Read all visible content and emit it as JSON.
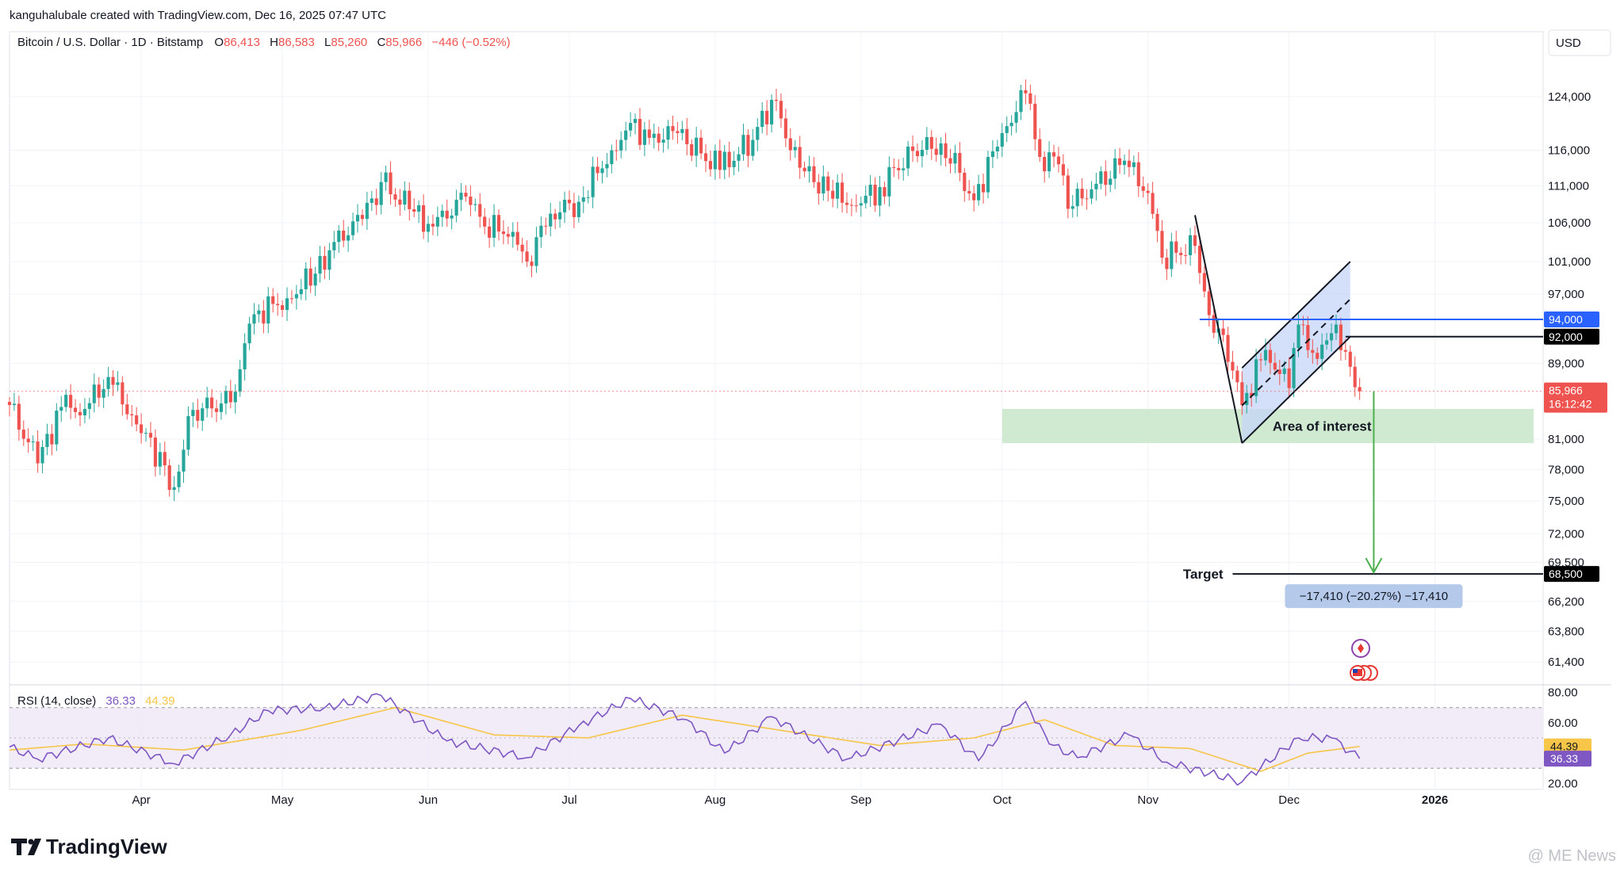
{
  "header": {
    "credit": "kanguhalubale created with TradingView.com, Dec 16, 2025 07:47 UTC"
  },
  "legend": {
    "symbol": "Bitcoin / U.S. Dollar · 1D · Bitstamp",
    "o_label": "O",
    "o_value": "86,413",
    "h_label": "H",
    "h_value": "86,583",
    "l_label": "L",
    "l_value": "85,260",
    "c_label": "C",
    "c_value": "85,966",
    "change": "−446 (−0.52%)"
  },
  "currency_button": "USD",
  "rsi_legend": {
    "label": "RSI (14, close)",
    "value1": "36.33",
    "value2": "44.39"
  },
  "annotations": {
    "area_of_interest": "Area of interest",
    "target_label": "Target",
    "measure_label": "−17,410 (−20.27%) −17,410"
  },
  "price_badges": {
    "blue_line": "94,000",
    "black_line": "92,000",
    "last_price": "85,966",
    "countdown": "16:12:42",
    "target": "68,500",
    "rsi_ma": "44.39",
    "rsi_value": "36.33"
  },
  "branding": {
    "logo_text": "TradingView",
    "watermark": "@ ME News"
  },
  "colors": {
    "up": "#26a69a",
    "down": "#ef5350",
    "blue_line": "#2962ff",
    "rsi_line": "#7e57c2",
    "rsi_ma": "#f7c548",
    "zone_green": "#c8e6c9",
    "channel_fill": "#c5d5f7",
    "arrow_green": "#4caf50"
  },
  "chart_data": [
    {
      "type": "candlestick",
      "title": "Bitcoin / U.S. Dollar · 1D · Bitstamp",
      "y_axis_ticks": [
        61400,
        63800,
        66200,
        69500,
        72000,
        75000,
        78000,
        81000,
        89000,
        97000,
        101000,
        106000,
        111000,
        116000,
        124000
      ],
      "y_axis_tick_labels": [
        "61,400",
        "63,800",
        "66,200",
        "69,500",
        "72,000",
        "75,000",
        "78,000",
        "81,000",
        "89,000",
        "97,000",
        "101,000",
        "106,000",
        "111,000",
        "116,000",
        "124,000"
      ],
      "x_axis_ticks": [
        "2025-04-01",
        "2025-05-01",
        "2025-06-01",
        "2025-07-01",
        "2025-08-01",
        "2025-09-01",
        "2025-10-01",
        "2025-11-01",
        "2025-12-01",
        "2026-01-01"
      ],
      "x_axis_tick_labels": [
        "Apr",
        "May",
        "Jun",
        "Jul",
        "Aug",
        "Sep",
        "Oct",
        "Nov",
        "Dec",
        "2026"
      ],
      "x_range": [
        "2025-03-04",
        "2026-01-24"
      ],
      "y_range": [
        59800,
        130500
      ],
      "y_scale": "log",
      "grid": true,
      "last_price": 85966,
      "horizontal_lines": [
        {
          "value": 94000,
          "color": "blue",
          "from": "2025-11-12"
        },
        {
          "value": 92000,
          "color": "black",
          "from": "2025-12-13"
        }
      ],
      "zones": [
        {
          "name": "Area of interest",
          "y_from": 80600,
          "y_to": 84100,
          "x_from": "2025-10-01",
          "x_to": "2026-01-22"
        }
      ],
      "flag_pattern": {
        "pole": [
          {
            "x": "2025-11-11",
            "y": 107000
          },
          {
            "x": "2025-11-21",
            "y": 80600
          }
        ],
        "channel_upper": [
          {
            "x": "2025-11-21",
            "y": 88500
          },
          {
            "x": "2025-12-14",
            "y": 101000
          }
        ],
        "channel_lower": [
          {
            "x": "2025-11-21",
            "y": 80600
          },
          {
            "x": "2025-12-14",
            "y": 92000
          }
        ]
      },
      "target": {
        "value": 68500,
        "label": "Target",
        "move": -17410,
        "move_pct": -20.27,
        "arrow_from": {
          "x": "2025-12-19",
          "y": 85966
        }
      },
      "candle_anchors": [
        {
          "date": "2025-03-04",
          "close": 84500
        },
        {
          "date": "2025-03-10",
          "close": 78600
        },
        {
          "date": "2025-03-15",
          "close": 84300
        },
        {
          "date": "2025-03-20",
          "close": 84100
        },
        {
          "date": "2025-03-25",
          "close": 87500
        },
        {
          "date": "2025-03-31",
          "close": 82500
        },
        {
          "date": "2025-04-06",
          "close": 78400
        },
        {
          "date": "2025-04-08",
          "close": 76300
        },
        {
          "date": "2025-04-12",
          "close": 84000
        },
        {
          "date": "2025-04-20",
          "close": 84800
        },
        {
          "date": "2025-04-25",
          "close": 94600
        },
        {
          "date": "2025-05-02",
          "close": 96500
        },
        {
          "date": "2025-05-08",
          "close": 99500
        },
        {
          "date": "2025-05-12",
          "close": 103500
        },
        {
          "date": "2025-05-18",
          "close": 106500
        },
        {
          "date": "2025-05-22",
          "close": 111500
        },
        {
          "date": "2025-05-28",
          "close": 107800
        },
        {
          "date": "2025-06-02",
          "close": 105500
        },
        {
          "date": "2025-06-09",
          "close": 109500
        },
        {
          "date": "2025-06-13",
          "close": 105500
        },
        {
          "date": "2025-06-19",
          "close": 104800
        },
        {
          "date": "2025-06-22",
          "close": 101000
        },
        {
          "date": "2025-06-27",
          "close": 107200
        },
        {
          "date": "2025-07-03",
          "close": 108800
        },
        {
          "date": "2025-07-10",
          "close": 116000
        },
        {
          "date": "2025-07-14",
          "close": 120000
        },
        {
          "date": "2025-07-18",
          "close": 117800
        },
        {
          "date": "2025-07-24",
          "close": 118500
        },
        {
          "date": "2025-08-02",
          "close": 113200
        },
        {
          "date": "2025-08-09",
          "close": 117500
        },
        {
          "date": "2025-08-13",
          "close": 123500
        },
        {
          "date": "2025-08-19",
          "close": 113500
        },
        {
          "date": "2025-08-25",
          "close": 110300
        },
        {
          "date": "2025-08-31",
          "close": 108300
        },
        {
          "date": "2025-09-05",
          "close": 110800
        },
        {
          "date": "2025-09-12",
          "close": 115900
        },
        {
          "date": "2025-09-18",
          "close": 117000
        },
        {
          "date": "2025-09-22",
          "close": 112800
        },
        {
          "date": "2025-09-25",
          "close": 109000
        },
        {
          "date": "2025-10-01",
          "close": 118500
        },
        {
          "date": "2025-10-06",
          "close": 124500
        },
        {
          "date": "2025-10-10",
          "close": 113000
        },
        {
          "date": "2025-10-12",
          "close": 115100
        },
        {
          "date": "2025-10-16",
          "close": 108200
        },
        {
          "date": "2025-10-20",
          "close": 110500
        },
        {
          "date": "2025-10-27",
          "close": 114500
        },
        {
          "date": "2025-11-01",
          "close": 110000
        },
        {
          "date": "2025-11-04",
          "close": 101500
        },
        {
          "date": "2025-11-11",
          "close": 103000
        },
        {
          "date": "2025-11-14",
          "close": 94500
        },
        {
          "date": "2025-11-17",
          "close": 92200
        },
        {
          "date": "2025-11-21",
          "close": 84500
        },
        {
          "date": "2025-11-26",
          "close": 90500
        },
        {
          "date": "2025-12-01",
          "close": 86300
        },
        {
          "date": "2025-12-03",
          "close": 93400
        },
        {
          "date": "2025-12-07",
          "close": 89500
        },
        {
          "date": "2025-12-10",
          "close": 92400
        },
        {
          "date": "2025-12-13",
          "close": 90300
        },
        {
          "date": "2025-12-15",
          "close": 86400
        },
        {
          "date": "2025-12-16",
          "close": 85966
        }
      ]
    },
    {
      "type": "line",
      "title": "RSI (14, close)",
      "y_range": [
        16,
        84
      ],
      "y_axis_ticks": [
        20,
        60,
        80
      ],
      "y_axis_tick_labels": [
        "20.00",
        "60.00",
        "80.00"
      ],
      "bands": [
        30,
        50,
        70
      ],
      "series": [
        {
          "name": "RSI",
          "anchors": [
            {
              "date": "2025-03-04",
              "value": 44
            },
            {
              "date": "2025-03-10",
              "value": 36
            },
            {
              "date": "2025-03-25",
              "value": 50
            },
            {
              "date": "2025-04-08",
              "value": 33
            },
            {
              "date": "2025-04-20",
              "value": 52
            },
            {
              "date": "2025-04-28",
              "value": 68
            },
            {
              "date": "2025-05-10",
              "value": 70
            },
            {
              "date": "2025-05-22",
              "value": 78
            },
            {
              "date": "2025-06-05",
              "value": 48
            },
            {
              "date": "2025-06-22",
              "value": 37
            },
            {
              "date": "2025-07-03",
              "value": 58
            },
            {
              "date": "2025-07-14",
              "value": 76
            },
            {
              "date": "2025-07-26",
              "value": 62
            },
            {
              "date": "2025-08-03",
              "value": 40
            },
            {
              "date": "2025-08-13",
              "value": 64
            },
            {
              "date": "2025-08-29",
              "value": 36
            },
            {
              "date": "2025-09-18",
              "value": 59
            },
            {
              "date": "2025-09-26",
              "value": 35
            },
            {
              "date": "2025-10-06",
              "value": 74
            },
            {
              "date": "2025-10-11",
              "value": 46
            },
            {
              "date": "2025-10-17",
              "value": 37
            },
            {
              "date": "2025-10-28",
              "value": 52
            },
            {
              "date": "2025-11-05",
              "value": 34
            },
            {
              "date": "2025-11-21",
              "value": 21
            },
            {
              "date": "2025-12-03",
              "value": 50
            },
            {
              "date": "2025-12-10",
              "value": 50
            },
            {
              "date": "2025-12-16",
              "value": 36.33
            }
          ]
        },
        {
          "name": "RSI-based MA",
          "anchors": [
            {
              "date": "2025-03-04",
              "value": 42
            },
            {
              "date": "2025-03-20",
              "value": 46
            },
            {
              "date": "2025-04-10",
              "value": 42
            },
            {
              "date": "2025-05-05",
              "value": 55
            },
            {
              "date": "2025-05-25",
              "value": 70
            },
            {
              "date": "2025-06-15",
              "value": 52
            },
            {
              "date": "2025-07-05",
              "value": 50
            },
            {
              "date": "2025-07-25",
              "value": 65
            },
            {
              "date": "2025-08-15",
              "value": 55
            },
            {
              "date": "2025-09-05",
              "value": 45
            },
            {
              "date": "2025-09-25",
              "value": 50
            },
            {
              "date": "2025-10-10",
              "value": 62
            },
            {
              "date": "2025-10-25",
              "value": 45
            },
            {
              "date": "2025-11-10",
              "value": 43
            },
            {
              "date": "2025-11-25",
              "value": 28
            },
            {
              "date": "2025-12-05",
              "value": 40
            },
            {
              "date": "2025-12-16",
              "value": 44.39
            }
          ]
        }
      ]
    }
  ]
}
